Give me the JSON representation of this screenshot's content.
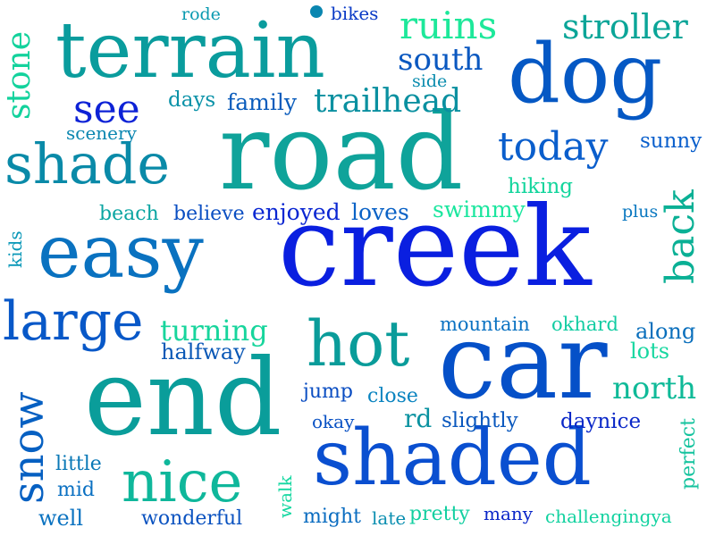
{
  "words": [
    {
      "text": "creek",
      "color": "#0a1fe0"
    },
    {
      "text": "road",
      "color": "#0fa39a"
    },
    {
      "text": "car",
      "color": "#0550c8"
    },
    {
      "text": "end",
      "color": "#0a9d9a"
    },
    {
      "text": "shaded",
      "color": "#0a4fd0"
    },
    {
      "text": "terrain",
      "color": "#0a9c9d"
    },
    {
      "text": "dog",
      "color": "#0558c4"
    },
    {
      "text": "easy",
      "color": "#0a72c0"
    },
    {
      "text": "hot",
      "color": "#0a9c9a"
    },
    {
      "text": "shade",
      "color": "#0a8aa8"
    },
    {
      "text": "nice",
      "color": "#0fb79b"
    },
    {
      "text": "large",
      "color": "#0858c8"
    },
    {
      "text": "today",
      "color": "#0a5ecc"
    },
    {
      "text": "ruins",
      "color": "#1de89a"
    },
    {
      "text": "stroller",
      "color": "#0aa598"
    },
    {
      "text": "snow",
      "color": "#0660c2"
    },
    {
      "text": "back",
      "color": "#0ab095"
    },
    {
      "text": "see",
      "color": "#0d22d6"
    },
    {
      "text": "trailhead",
      "color": "#0a90a0"
    },
    {
      "text": "south",
      "color": "#0a58c0"
    },
    {
      "text": "stone",
      "color": "#12d29c"
    },
    {
      "text": "north",
      "color": "#0fba98"
    },
    {
      "text": "turning",
      "color": "#17d59c"
    },
    {
      "text": "family",
      "color": "#0a5cbc"
    },
    {
      "text": "days",
      "color": "#0a92a8"
    },
    {
      "text": "sunny",
      "color": "#0a5fcc"
    },
    {
      "text": "hiking",
      "color": "#12d59c"
    },
    {
      "text": "swimmy",
      "color": "#1ae69e"
    },
    {
      "text": "enjoyed",
      "color": "#0a26d2"
    },
    {
      "text": "loves",
      "color": "#0a62c6"
    },
    {
      "text": "beach",
      "color": "#0aa5a2"
    },
    {
      "text": "believe",
      "color": "#0a4ec2"
    },
    {
      "text": "halfway",
      "color": "#0a58b6"
    },
    {
      "text": "mountain",
      "color": "#0a72c2"
    },
    {
      "text": "okhard",
      "color": "#12cca2"
    },
    {
      "text": "along",
      "color": "#0a6fbc"
    },
    {
      "text": "lots",
      "color": "#17d7a0"
    },
    {
      "text": "jump",
      "color": "#0a4dc2"
    },
    {
      "text": "close",
      "color": "#0a84c0"
    },
    {
      "text": "rd",
      "color": "#0a92a0"
    },
    {
      "text": "slightly",
      "color": "#0a58be"
    },
    {
      "text": "daynice",
      "color": "#0a28c8"
    },
    {
      "text": "perfect",
      "color": "#14c39e"
    },
    {
      "text": "okay",
      "color": "#0a52c4"
    },
    {
      "text": "little",
      "color": "#0a78b6"
    },
    {
      "text": "mid",
      "color": "#0a70c2"
    },
    {
      "text": "well",
      "color": "#0a72c0"
    },
    {
      "text": "wonderful",
      "color": "#0a52c0"
    },
    {
      "text": "walk",
      "color": "#17d8a2"
    },
    {
      "text": "might",
      "color": "#0a6cc0"
    },
    {
      "text": "late",
      "color": "#0a8eb0"
    },
    {
      "text": "pretty",
      "color": "#12cfa0"
    },
    {
      "text": "many",
      "color": "#0a26c8"
    },
    {
      "text": "challengingya",
      "color": "#12d2a0"
    },
    {
      "text": "plus",
      "color": "#0a78c0"
    },
    {
      "text": "kids",
      "color": "#0a98b8"
    },
    {
      "text": "rode",
      "color": "#0a9ab0"
    },
    {
      "text": "bikes",
      "color": "#0a3ac6"
    },
    {
      "text": "side",
      "color": "#0a8cae"
    },
    {
      "text": "scenery",
      "color": "#0a86b0"
    }
  ],
  "marks": [
    {
      "name": "dot-mark",
      "color": "#0a86b0"
    }
  ]
}
